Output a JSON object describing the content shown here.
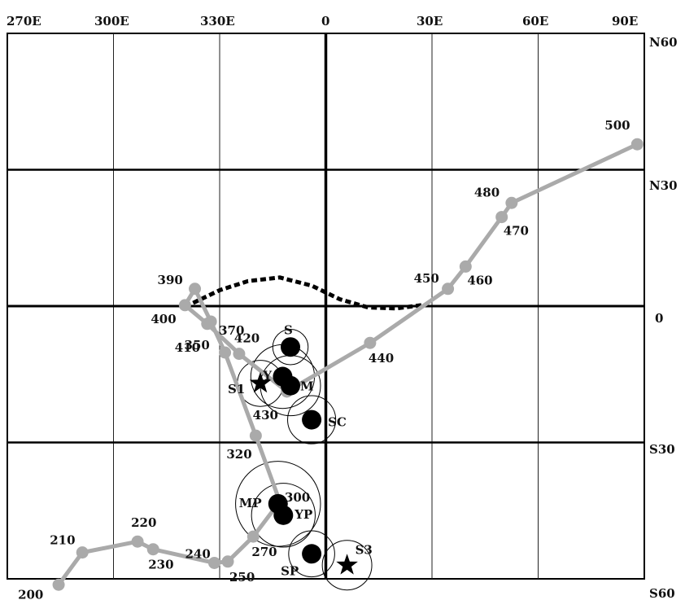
{
  "longitude_labels": [
    "270E",
    "300E",
    "330E",
    "0",
    "30E",
    "60E",
    "90E"
  ],
  "latitude_labels": [
    "N60",
    "N30",
    "0",
    "S30",
    "S60"
  ],
  "path_points": [
    {
      "label": "200",
      "lon": -75.5,
      "lat": -61.3
    },
    {
      "label": "210",
      "lon": -68.8,
      "lat": -54.2
    },
    {
      "label": "220",
      "lon": -53.2,
      "lat": -51.8
    },
    {
      "label": "230",
      "lon": -48.8,
      "lat": -53.5
    },
    {
      "label": "240",
      "lon": -31.5,
      "lat": -56.5
    },
    {
      "label": "250",
      "lon": -27.7,
      "lat": -56.2
    },
    {
      "label": "270",
      "lon": -20.5,
      "lat": -50.7
    },
    {
      "label": "300",
      "lon": -13.0,
      "lat": -43.0
    },
    {
      "label": "320",
      "lon": -19.8,
      "lat": -28.5
    },
    {
      "label": "350",
      "lon": -28.5,
      "lat": -10.2
    },
    {
      "label": "370",
      "lon": -32.5,
      "lat": -3.4
    },
    {
      "label": "390",
      "lon": -37.0,
      "lat": 3.8
    },
    {
      "label": "400",
      "lon": -39.8,
      "lat": 0.2
    },
    {
      "label": "410",
      "lon": -33.5,
      "lat": -3.9
    },
    {
      "label": "420",
      "lon": -24.5,
      "lat": -10.5
    },
    {
      "label": "430",
      "lon": -11.0,
      "lat": -18.8
    },
    {
      "label": "440",
      "lon": 12.5,
      "lat": -8.1
    },
    {
      "label": "450",
      "lon": 34.5,
      "lat": 3.8
    },
    {
      "label": "460",
      "lon": 39.5,
      "lat": 8.7
    },
    {
      "label": "470",
      "lon": 49.7,
      "lat": 19.6
    },
    {
      "label": "480",
      "lon": 52.5,
      "lat": 22.7
    },
    {
      "label": "500",
      "lon": 88.0,
      "lat": 35.6
    }
  ],
  "dashed_curve": [
    {
      "lon": -37.5,
      "lat": 0.7
    },
    {
      "lon": -30,
      "lat": 3.5
    },
    {
      "lon": -22,
      "lat": 5.5
    },
    {
      "lon": -13,
      "lat": 6.3
    },
    {
      "lon": -4,
      "lat": 4.5
    },
    {
      "lon": 4,
      "lat": 1.5
    },
    {
      "lon": 12,
      "lat": -0.3
    },
    {
      "lon": 20,
      "lat": -0.5
    },
    {
      "lon": 27,
      "lat": 0.2
    }
  ],
  "sites": [
    {
      "label": "S",
      "lon": -10,
      "lat": -9.0,
      "marker": "dot",
      "rings": [
        5
      ]
    },
    {
      "label": "Y",
      "lon": -12.2,
      "lat": -15.5,
      "marker": "dot",
      "rings": [
        9
      ]
    },
    {
      "label": "M",
      "lon": -10.0,
      "lat": -17.5,
      "marker": "dot",
      "rings": [
        8.5
      ]
    },
    {
      "label": "S1",
      "lon": -18.5,
      "lat": -17.0,
      "marker": "star",
      "rings": [
        6.5
      ]
    },
    {
      "label": "SC",
      "lon": -4.0,
      "lat": -25.0,
      "marker": "dot",
      "rings": [
        6.8
      ]
    },
    {
      "label": "MP",
      "lon": -13.5,
      "lat": -43.5,
      "marker": "dot",
      "rings": [
        12
      ]
    },
    {
      "label": "YP",
      "lon": -12.0,
      "lat": -46.0,
      "marker": "dot",
      "rings": [
        9
      ]
    },
    {
      "label": "SP",
      "lon": -4.0,
      "lat": -54.5,
      "marker": "dot",
      "rings": [
        6.5
      ]
    },
    {
      "label": "S3",
      "lon": 6.0,
      "lat": -57.0,
      "marker": "star",
      "rings": [
        7
      ]
    }
  ]
}
